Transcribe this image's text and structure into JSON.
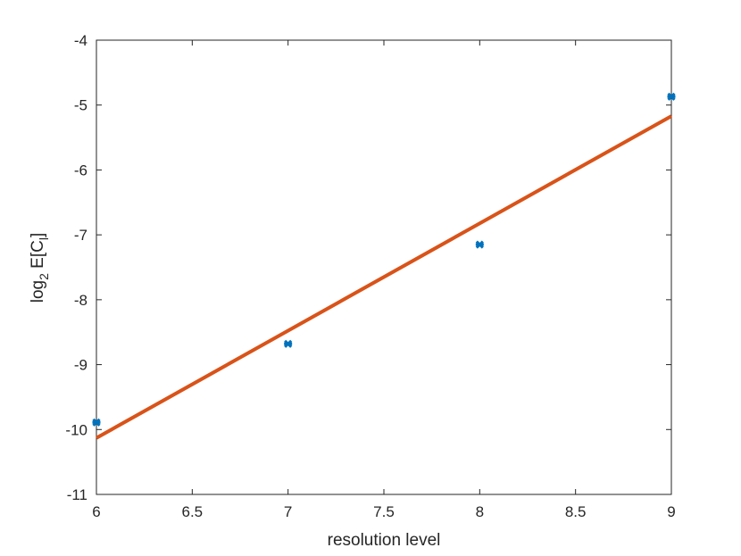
{
  "chart_data": {
    "type": "scatter",
    "xlabel": "resolution level",
    "ylabel": [
      "log",
      "2",
      " E[C",
      "l",
      "]"
    ],
    "xlim": [
      6,
      9
    ],
    "ylim": [
      -11,
      -4
    ],
    "xticks": [
      6,
      6.5,
      7,
      7.5,
      8,
      8.5,
      9
    ],
    "yticks": [
      -11,
      -10,
      -9,
      -8,
      -7,
      -6,
      -5,
      -4
    ],
    "grid": false,
    "series": [
      {
        "type": "scatter",
        "color": "#0072bd",
        "x": [
          6,
          7,
          8,
          9
        ],
        "values": [
          -9.89,
          -8.68,
          -7.15,
          -4.87
        ]
      },
      {
        "type": "line",
        "color": "#d95319",
        "x": [
          6,
          9
        ],
        "values": [
          -10.13,
          -5.17
        ]
      }
    ]
  }
}
